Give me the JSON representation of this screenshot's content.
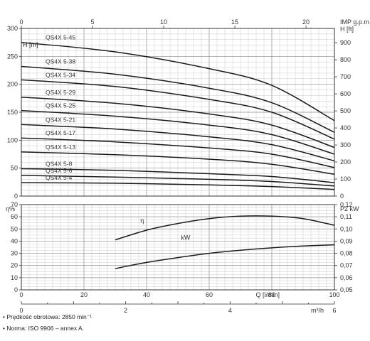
{
  "chart_data": [
    {
      "type": "line",
      "title": "",
      "ylabel": "H [m]",
      "ylabel_right": "H [ft]",
      "xlabel_top": "IMP g.p.m.",
      "x_unit": "Q [l/min]",
      "xlim": [
        0,
        100
      ],
      "ylim": [
        0,
        300
      ],
      "top_axis_ticks": [
        "0",
        "5",
        "10",
        "15",
        "20"
      ],
      "right_axis_ticks": [
        "0",
        "100",
        "200",
        "300",
        "400",
        "500",
        "600",
        "700",
        "800",
        "900"
      ],
      "left_axis_ticks": [
        "0",
        "50",
        "100",
        "150",
        "200",
        "250",
        "300"
      ],
      "grid": true,
      "series": [
        {
          "name": "QS4X 5-45",
          "x": [
            0,
            30,
            60,
            80,
            100
          ],
          "y": [
            275,
            258,
            228,
            198,
            135
          ]
        },
        {
          "name": "QS4X 5-38",
          "x": [
            0,
            30,
            60,
            80,
            100
          ],
          "y": [
            232,
            218,
            193,
            167,
            114
          ]
        },
        {
          "name": "QS4X 5-34",
          "x": [
            0,
            30,
            60,
            80,
            100
          ],
          "y": [
            208,
            196,
            173,
            150,
            102
          ]
        },
        {
          "name": "QS4X 5-29",
          "x": [
            0,
            30,
            60,
            80,
            100
          ],
          "y": [
            177,
            166,
            147,
            127,
            87
          ]
        },
        {
          "name": "QS4X 5-25",
          "x": [
            0,
            30,
            60,
            80,
            100
          ],
          "y": [
            153,
            143,
            127,
            110,
            75
          ]
        },
        {
          "name": "QS4X 5-21",
          "x": [
            0,
            30,
            60,
            80,
            100
          ],
          "y": [
            128,
            120,
            106,
            92,
            63
          ]
        },
        {
          "name": "QS4X 5-17",
          "x": [
            0,
            30,
            60,
            80,
            100
          ],
          "y": [
            104,
            97,
            86,
            75,
            51
          ]
        },
        {
          "name": "QS4X 5-13",
          "x": [
            0,
            30,
            60,
            80,
            100
          ],
          "y": [
            79,
            74,
            66,
            57,
            39
          ]
        },
        {
          "name": "QS4X 5-8",
          "x": [
            0,
            30,
            60,
            80,
            100
          ],
          "y": [
            49,
            46,
            40,
            35,
            24
          ]
        },
        {
          "name": "QS4X 5-6",
          "x": [
            0,
            30,
            60,
            80,
            100
          ],
          "y": [
            37,
            34,
            30,
            26,
            18
          ]
        },
        {
          "name": "QS4X 5-4",
          "x": [
            0,
            30,
            60,
            80,
            100
          ],
          "y": [
            24,
            23,
            20,
            17,
            12
          ]
        }
      ]
    },
    {
      "type": "line",
      "title": "",
      "ylabel": "η%",
      "ylabel_right": "P2 kW",
      "xlabel": "Q [l/min]",
      "xlabel_secondary": "m³/h",
      "xlim": [
        0,
        100
      ],
      "ylim": [
        0,
        70
      ],
      "left_axis_ticks": [
        "0",
        "10",
        "20",
        "30",
        "40",
        "50",
        "60",
        "70"
      ],
      "right_axis_ticks": [
        "0,05",
        "0,06",
        "0,07",
        "0,08",
        "0,09",
        "0,10",
        "0,11",
        "0,12"
      ],
      "bottom_axis_ticks": [
        "0",
        "20",
        "40",
        "60",
        "80",
        "100"
      ],
      "bottom_axis_ticks_m3h": [
        "0",
        "2",
        "4",
        "6"
      ],
      "grid": true,
      "series": [
        {
          "name": "η",
          "axis": "left",
          "x": [
            30,
            40,
            50,
            60,
            70,
            80,
            90,
            100
          ],
          "y": [
            41,
            49,
            54.5,
            58.5,
            60.5,
            60.5,
            58.5,
            53
          ]
        },
        {
          "name": "kW",
          "axis": "right",
          "x": [
            30,
            40,
            50,
            60,
            70,
            80,
            90,
            100
          ],
          "y": [
            0.0675,
            0.0725,
            0.0765,
            0.08,
            0.0825,
            0.0845,
            0.086,
            0.087
          ]
        }
      ]
    }
  ],
  "notes": [
    "• Prędkość obrotowa: 2850 min⁻¹",
    "• Norma: ISO 9906 – annex A."
  ]
}
